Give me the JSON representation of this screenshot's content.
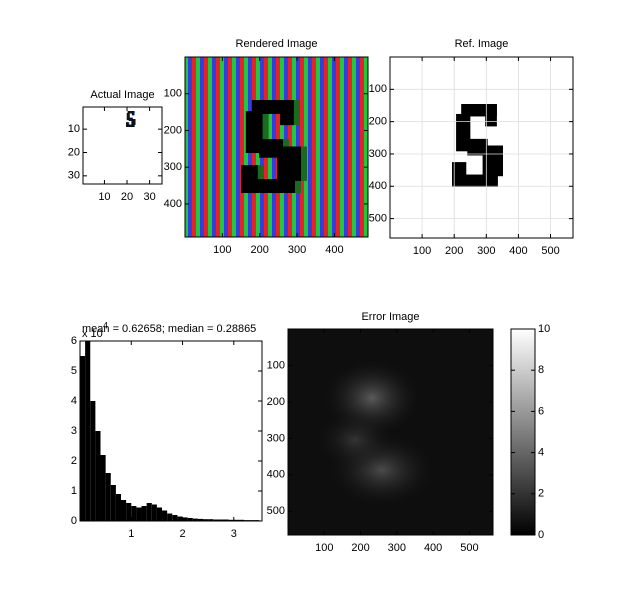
{
  "chart_data": [
    {
      "type": "image",
      "title": "Actual Image",
      "xlim": [
        0.5,
        35.5
      ],
      "ylim": [
        0.5,
        33.5
      ],
      "ydir": "reverse",
      "xticks": [
        10,
        20,
        30
      ],
      "yticks": [
        10,
        20,
        30
      ]
    },
    {
      "type": "image",
      "title": "Rendered Image",
      "xlim": [
        0,
        490
      ],
      "ylim": [
        0,
        490
      ],
      "ydir": "reverse",
      "xticks": [
        100,
        200,
        300,
        400
      ],
      "yticks": [
        100,
        200,
        300,
        400
      ]
    },
    {
      "type": "image",
      "title": "Ref. Image",
      "xlim": [
        0,
        570
      ],
      "ylim": [
        0,
        560
      ],
      "ydir": "reverse",
      "xticks": [
        100,
        200,
        300,
        400,
        500
      ],
      "yticks": [
        100,
        200,
        300,
        400,
        500
      ],
      "grid": true
    },
    {
      "type": "histogram",
      "title": "mean = 0.62658; median = 0.28865",
      "yscale_base": "x 10",
      "yscale_power": "4",
      "color": "#000000",
      "bins": [
        0,
        0.1,
        0.2,
        0.3,
        0.4,
        0.5,
        0.6,
        0.7,
        0.8,
        0.9,
        1.0,
        1.1,
        1.2,
        1.3,
        1.4,
        1.5,
        1.6,
        1.7,
        1.8,
        1.9,
        2.0,
        2.1,
        2.2,
        2.3,
        2.4,
        2.5,
        2.6,
        2.7,
        2.8,
        2.9,
        3.0,
        3.1,
        3.2,
        3.3,
        3.4,
        3.5
      ],
      "values": [
        5.5,
        6.1,
        4.0,
        3.0,
        2.2,
        1.6,
        1.2,
        0.9,
        0.7,
        0.6,
        0.5,
        0.45,
        0.5,
        0.6,
        0.55,
        0.45,
        0.35,
        0.25,
        0.2,
        0.15,
        0.12,
        0.1,
        0.08,
        0.07,
        0.06,
        0.06,
        0.05,
        0.05,
        0.05,
        0.04,
        0.04,
        0.04,
        0.03,
        0.03,
        0.03
      ],
      "xlim": [
        0,
        3.55
      ],
      "ylim": [
        0,
        6
      ],
      "xticks": [
        1,
        2,
        3
      ],
      "yticks": [
        0,
        1,
        2,
        3,
        4,
        5,
        6
      ]
    },
    {
      "type": "image",
      "title": "Error Image",
      "xlim": [
        0,
        565
      ],
      "ylim": [
        0,
        565
      ],
      "ydir": "reverse",
      "xticks": [
        100,
        200,
        300,
        400,
        500
      ],
      "yticks": [
        100,
        200,
        300,
        400,
        500
      ]
    },
    {
      "type": "colorbar",
      "colormap": "gray",
      "ylim": [
        0,
        10
      ],
      "yticks": [
        0,
        2,
        4,
        6,
        8,
        10
      ]
    }
  ]
}
